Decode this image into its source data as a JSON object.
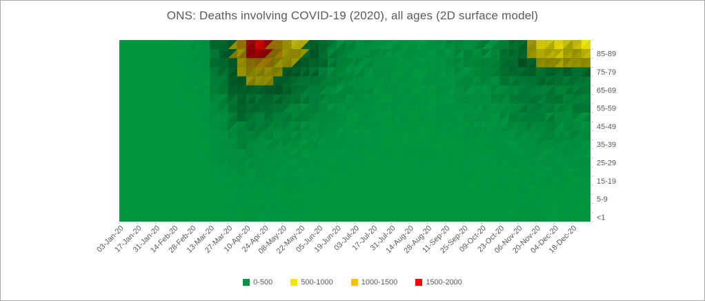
{
  "title": "ONS: Deaths involving COVID-19 (2020), all ages (2D surface model)",
  "title_color": "#595959",
  "window": {
    "background": "#ffffff",
    "border_color": "#a6a6a6"
  },
  "axis": {
    "label_color": "#595959",
    "tick_color": "#bfbfbf",
    "font_size": 11,
    "x_label_rotation_deg": -45,
    "y_axis_side": "right"
  },
  "chart_data": {
    "type": "heatmap",
    "subtype": "excel-2d-surface-contour",
    "title": "ONS: Deaths involving COVID-19 (2020), all ages (2D surface model)",
    "xlabel": "",
    "ylabel": "",
    "x": [
      "03-Jan-20",
      "17-Jan-20",
      "31-Jan-20",
      "14-Feb-20",
      "28-Feb-20",
      "13-Mar-20",
      "27-Mar-20",
      "10-Apr-20",
      "24-Apr-20",
      "08-May-20",
      "22-May-20",
      "05-Jun-20",
      "19-Jun-20",
      "03-Jul-20",
      "17-Jul-20",
      "31-Jul-20",
      "14-Aug-20",
      "28-Aug-20",
      "11-Sep-20",
      "25-Sep-20",
      "09-Oct-20",
      "23-Oct-20",
      "06-Nov-20",
      "20-Nov-20",
      "04-Dec-20",
      "18-Dec-20"
    ],
    "x_note": "weekly series; every second week labelled on axis",
    "age_groups_top_to_bottom": [
      "85-89",
      "75-79",
      "65-69",
      "55-59",
      "45-49",
      "35-39",
      "25-29",
      "15-19",
      "5-9",
      "<1"
    ],
    "y_axis_labels_bottom_to_top": [
      "<1",
      "5-9",
      "15-19",
      "25-29",
      "35-39",
      "45-49",
      "55-59",
      "65-69",
      "75-79",
      "85-89"
    ],
    "values_note": "weekly deaths estimated from contour colour bands (0-500 green, 500-1000 yellow, 1000-1500 orange, 1500-2000 red)",
    "series": [
      {
        "name": "85-89",
        "values": [
          0,
          0,
          0,
          0,
          2,
          15,
          400,
          1850,
          1600,
          750,
          520,
          160,
          80,
          40,
          25,
          15,
          10,
          10,
          20,
          45,
          90,
          150,
          450,
          800,
          650,
          850
        ]
      },
      {
        "name": "75-79",
        "values": [
          0,
          0,
          0,
          0,
          1,
          10,
          200,
          950,
          800,
          380,
          200,
          80,
          40,
          25,
          15,
          10,
          8,
          8,
          12,
          25,
          50,
          80,
          230,
          420,
          350,
          430
        ]
      },
      {
        "name": "65-69",
        "values": [
          0,
          0,
          0,
          0,
          1,
          5,
          100,
          480,
          400,
          190,
          100,
          45,
          25,
          15,
          10,
          6,
          5,
          5,
          8,
          15,
          30,
          45,
          120,
          210,
          180,
          220
        ]
      },
      {
        "name": "55-59",
        "values": [
          0,
          0,
          0,
          0,
          0,
          3,
          50,
          230,
          190,
          90,
          50,
          22,
          12,
          8,
          5,
          3,
          3,
          3,
          4,
          8,
          15,
          22,
          60,
          100,
          85,
          105
        ]
      },
      {
        "name": "45-49",
        "values": [
          0,
          0,
          0,
          0,
          0,
          1,
          20,
          90,
          75,
          35,
          20,
          9,
          5,
          3,
          2,
          1,
          1,
          1,
          2,
          3,
          6,
          9,
          25,
          40,
          35,
          42
        ]
      },
      {
        "name": "35-39",
        "values": [
          0,
          0,
          0,
          0,
          0,
          1,
          8,
          35,
          28,
          13,
          8,
          4,
          2,
          1,
          1,
          1,
          1,
          1,
          1,
          1,
          2,
          4,
          9,
          15,
          13,
          16
        ]
      },
      {
        "name": "25-29",
        "values": [
          0,
          0,
          0,
          0,
          0,
          0,
          3,
          12,
          10,
          5,
          3,
          1,
          1,
          0,
          0,
          0,
          0,
          0,
          0,
          1,
          1,
          1,
          3,
          5,
          4,
          5
        ]
      },
      {
        "name": "15-19",
        "values": [
          0,
          0,
          0,
          0,
          0,
          0,
          1,
          4,
          3,
          2,
          1,
          0,
          0,
          0,
          0,
          0,
          0,
          0,
          0,
          0,
          0,
          1,
          1,
          2,
          2,
          2
        ]
      },
      {
        "name": "5-9",
        "values": [
          0,
          0,
          0,
          0,
          0,
          0,
          0,
          1,
          1,
          0,
          0,
          0,
          0,
          0,
          0,
          0,
          0,
          0,
          0,
          0,
          0,
          0,
          0,
          1,
          1,
          1
        ]
      },
      {
        "name": "<1",
        "values": [
          0,
          0,
          0,
          0,
          0,
          0,
          1,
          2,
          2,
          1,
          0,
          0,
          0,
          0,
          0,
          0,
          0,
          0,
          0,
          0,
          0,
          0,
          1,
          1,
          1,
          1
        ]
      }
    ],
    "bands": [
      {
        "label": "0-500",
        "min": 0,
        "max": 500,
        "color": "#009640"
      },
      {
        "label": "500-1000",
        "min": 500,
        "max": 1000,
        "color": "#f2e600"
      },
      {
        "label": "1000-1500",
        "min": 1000,
        "max": 1500,
        "color": "#ffc000"
      },
      {
        "label": "1500-2000",
        "min": 1500,
        "max": 2000,
        "color": "#ff0000"
      }
    ],
    "legend_position": "bottom",
    "grid": false
  }
}
